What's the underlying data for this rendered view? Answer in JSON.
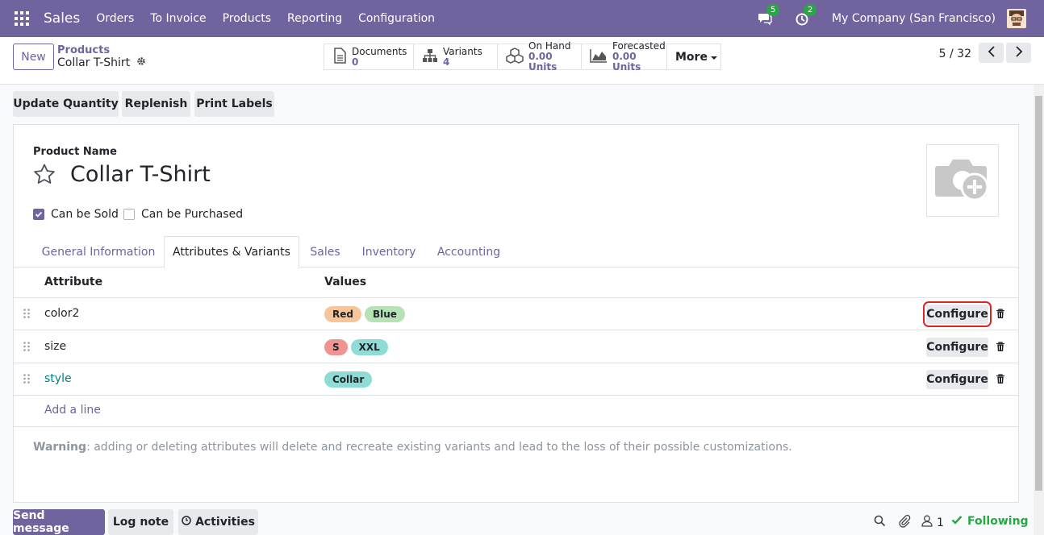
{
  "navbar": {
    "app_name": "Sales",
    "menu": [
      "Orders",
      "To Invoice",
      "Products",
      "Reporting",
      "Configuration"
    ],
    "messages_count": "5",
    "activities_count": "2",
    "company": "My Company (San Francisco)"
  },
  "control": {
    "new_label": "New",
    "breadcrumb_parent": "Products",
    "breadcrumb_current": "Collar T-Shirt",
    "smart_buttons": [
      {
        "label": "Documents",
        "value": "0",
        "icon": "file-icon"
      },
      {
        "label": "Variants",
        "value": "4",
        "icon": "sitemap-icon"
      },
      {
        "label": "On Hand",
        "value": "0.00 Units",
        "icon": "cubes-icon"
      },
      {
        "label": "Forecasted",
        "value": "0.00 Units",
        "icon": "area-chart-icon"
      }
    ],
    "more_label": "More",
    "pager": "5 / 32"
  },
  "actions": [
    "Update Quantity",
    "Replenish",
    "Print Labels"
  ],
  "form": {
    "product_name_label": "Product Name",
    "product_name": "Collar T-Shirt",
    "can_be_sold": {
      "label": "Can be Sold",
      "checked": true
    },
    "can_be_purchased": {
      "label": "Can be Purchased",
      "checked": false
    },
    "tabs": [
      "General Information",
      "Attributes & Variants",
      "Sales",
      "Inventory",
      "Accounting"
    ],
    "active_tab": "Attributes & Variants",
    "table": {
      "headers": [
        "Attribute",
        "Values"
      ],
      "rows": [
        {
          "attribute": "color2",
          "values": [
            {
              "label": "Red",
              "color": "#f7c59a"
            },
            {
              "label": "Blue",
              "color": "#b6e2b6"
            }
          ],
          "configure": "Configure"
        },
        {
          "attribute": "size",
          "values": [
            {
              "label": "S",
              "color": "#f29393"
            },
            {
              "label": "XXL",
              "color": "#8fdcd6"
            }
          ],
          "configure": "Configure"
        },
        {
          "attribute": "style",
          "values": [
            {
              "label": "Collar",
              "color": "#8fdcd6"
            }
          ],
          "configure": "Configure"
        }
      ],
      "add_line": "Add a line"
    },
    "warning_bold": "Warning",
    "warning_text": ": adding or deleting attributes will delete and recreate existing variants and lead to the loss of their possible customizations."
  },
  "chatter": {
    "send_message": "Send message",
    "log_note": "Log note",
    "activities": "Activities",
    "followers_count": "1",
    "following": "Following"
  },
  "colors": {
    "brand": "#71639e",
    "link": "#017e84",
    "success": "#28a745",
    "highlight": "#dc2626"
  }
}
